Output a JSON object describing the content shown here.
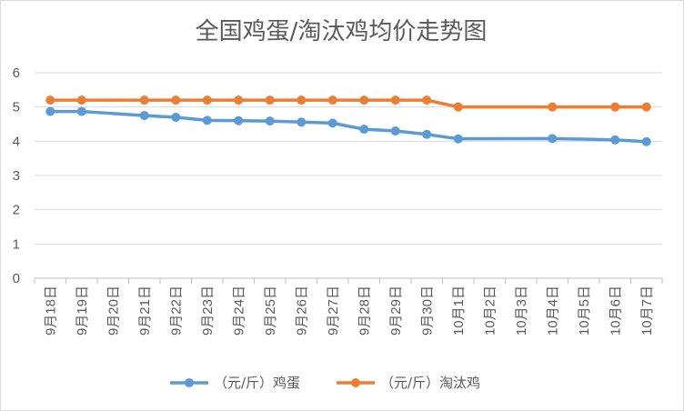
{
  "chart_data": {
    "type": "line",
    "title": "全国鸡蛋/淘汰鸡均价走势图",
    "categories": [
      "9月18日",
      "9月19日",
      "9月20日",
      "9月21日",
      "9月22日",
      "9月23日",
      "9月24日",
      "9月25日",
      "9月26日",
      "9月27日",
      "9月28日",
      "9月29日",
      "9月30日",
      "10月1日",
      "10月2日",
      "10月3日",
      "10月4日",
      "10月5日",
      "10月6日",
      "10月7日"
    ],
    "ylim": [
      0,
      6
    ],
    "yticks": [
      "0",
      "1",
      "2",
      "3",
      "4",
      "5",
      "6"
    ],
    "grid": true,
    "legend_position": "bottom",
    "series": [
      {
        "name": "（元/斤）鸡蛋",
        "color": "#5B9BD5",
        "values": [
          4.87,
          4.87,
          null,
          4.75,
          4.7,
          4.61,
          4.6,
          4.59,
          4.56,
          4.53,
          4.35,
          4.3,
          4.2,
          4.07,
          null,
          null,
          4.08,
          null,
          4.04,
          3.99
        ]
      },
      {
        "name": "（元/斤）淘汰鸡",
        "color": "#ED7D31",
        "values": [
          5.2,
          5.2,
          null,
          5.2,
          5.2,
          5.2,
          5.2,
          5.2,
          5.2,
          5.2,
          5.2,
          5.2,
          5.2,
          5.0,
          null,
          null,
          5.0,
          null,
          5.0,
          5.0
        ]
      }
    ]
  }
}
